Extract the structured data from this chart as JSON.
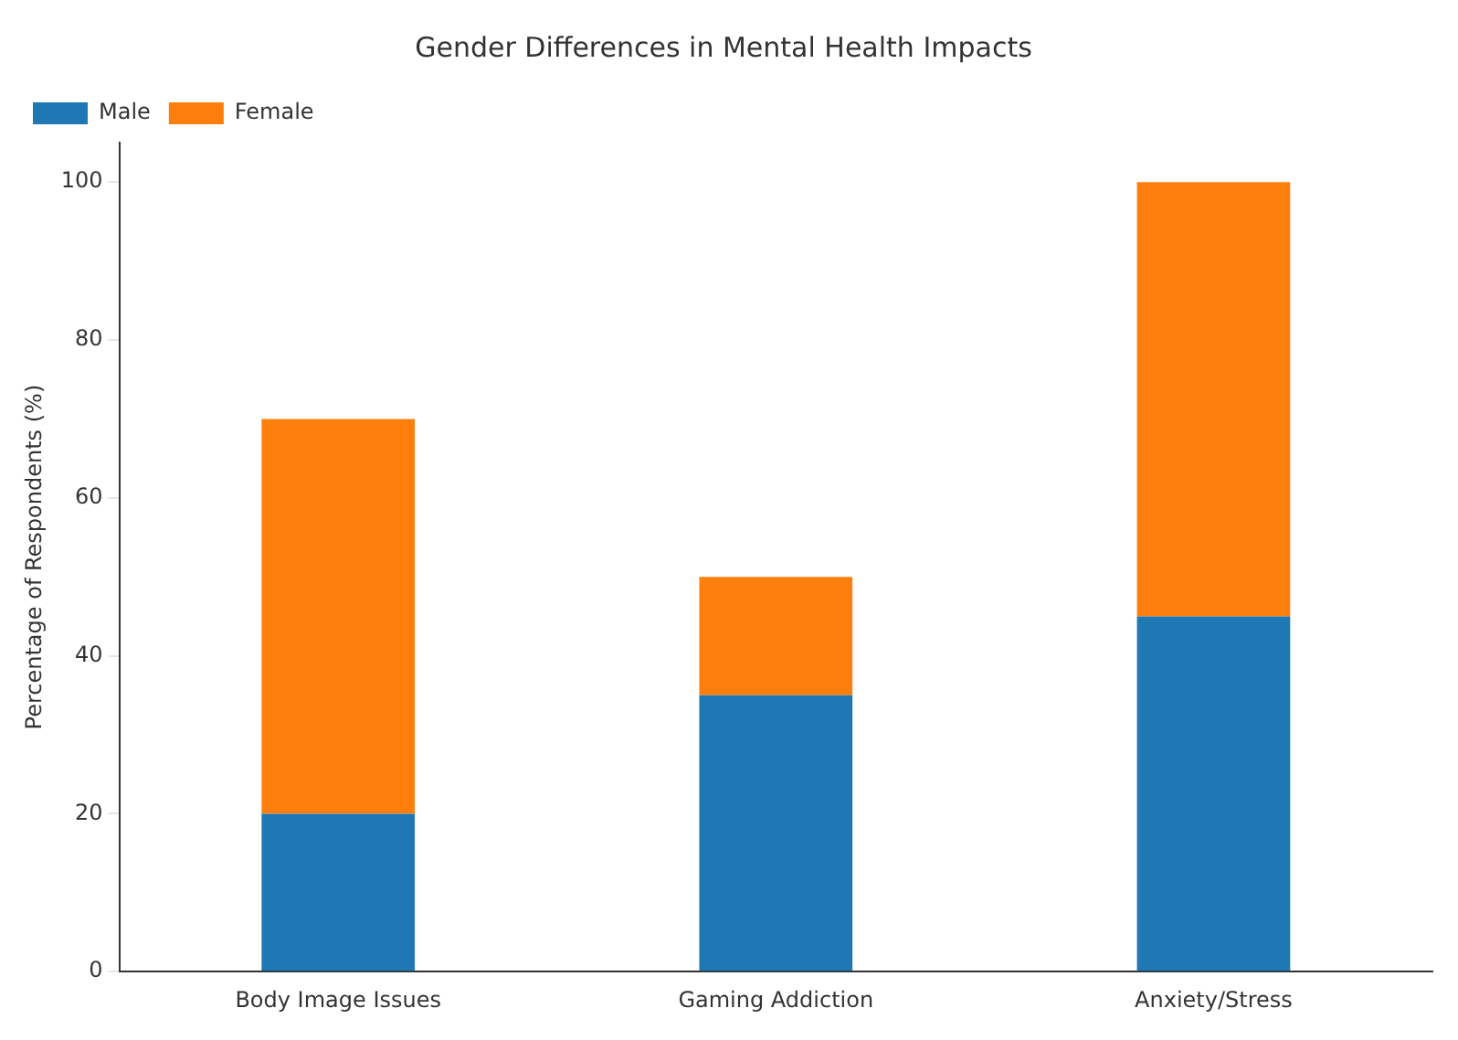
{
  "chart_data": {
    "type": "bar",
    "title": "Gender Differences in Mental Health Impacts",
    "ylabel": "Percentage of Respondents (%)",
    "categories": [
      "Body Image Issues",
      "Gaming Addiction",
      "Anxiety/Stress"
    ],
    "series": [
      {
        "name": "Male",
        "color": "#1f77b4",
        "values": [
          20,
          35,
          45
        ]
      },
      {
        "name": "Female",
        "color": "#ff7f0e",
        "values": [
          50,
          15,
          55
        ]
      }
    ],
    "stacked": true,
    "ylim": [
      0,
      105
    ],
    "yticks": [
      0,
      20,
      40,
      60,
      80,
      100
    ],
    "grid": false,
    "legend": "top left"
  }
}
